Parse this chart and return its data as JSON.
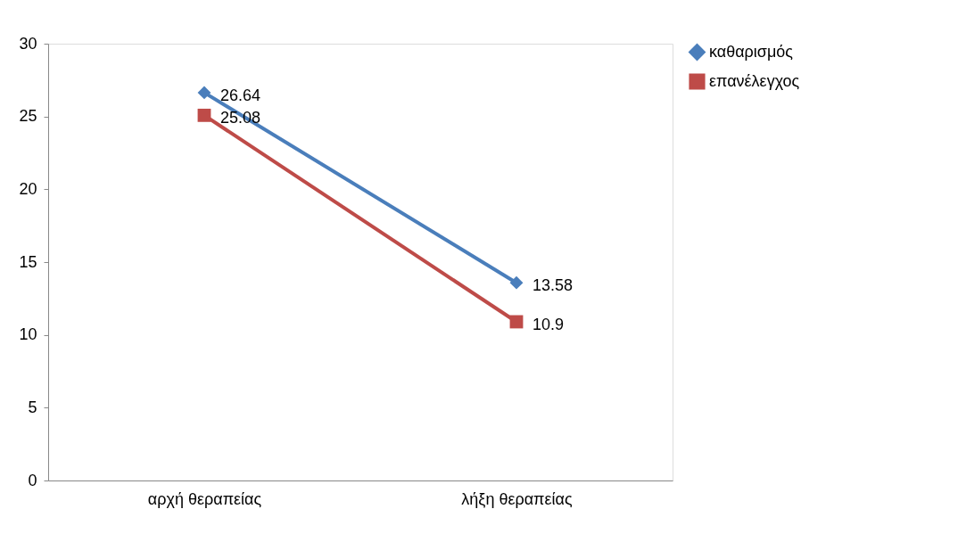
{
  "chart_data": {
    "type": "line",
    "categories": [
      "αρχή θεραπείας",
      "λήξη θεραπείας"
    ],
    "series": [
      {
        "name": "καθαρισμός",
        "color": "#4a7ebb",
        "values": [
          26.64,
          13.58
        ],
        "marker": "diamond"
      },
      {
        "name": "επανέλεγχος",
        "color": "#be4b48",
        "values": [
          25.08,
          10.9
        ],
        "marker": "square"
      }
    ],
    "ylim": [
      0,
      30
    ],
    "yticks": [
      0,
      5,
      10,
      15,
      20,
      25,
      30
    ],
    "grid": false,
    "legend": "right",
    "data_labels": true,
    "line_style": "solid"
  }
}
